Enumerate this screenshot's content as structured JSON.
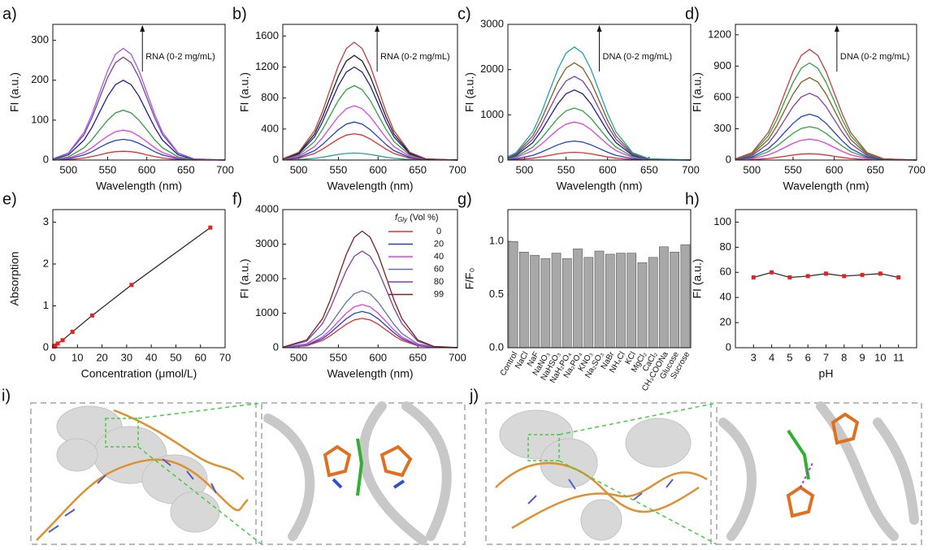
{
  "chart_data": [
    {
      "type": "line",
      "label": "a)",
      "x_label": "Wavelength (nm)",
      "y_label": "FI (a.u.)",
      "annotation": "RNA (0-2 mg/mL)",
      "xlim": [
        480,
        700
      ],
      "xticks": [
        500,
        550,
        600,
        650,
        700
      ],
      "ylim": [
        0,
        340
      ],
      "yticks": [
        0,
        100,
        200,
        300
      ],
      "x": [
        480,
        500,
        520,
        530,
        540,
        550,
        560,
        570,
        580,
        590,
        600,
        610,
        620,
        640,
        660,
        700
      ],
      "series": [
        {
          "color": "#e03030",
          "values": [
            0,
            1,
            5,
            9,
            13,
            18,
            21,
            22,
            21,
            18,
            13,
            9,
            5,
            1,
            0,
            0
          ]
        },
        {
          "color": "#2040c8",
          "values": [
            1,
            3,
            13,
            21,
            32,
            42,
            49,
            52,
            49,
            42,
            32,
            21,
            13,
            3,
            1,
            0
          ]
        },
        {
          "color": "#e040e0",
          "values": [
            1,
            5,
            19,
            31,
            46,
            60,
            71,
            75,
            71,
            60,
            46,
            31,
            19,
            5,
            1,
            0
          ]
        },
        {
          "color": "#30a040",
          "values": [
            1,
            8,
            31,
            51,
            76,
            100,
            118,
            125,
            118,
            100,
            76,
            51,
            31,
            8,
            1,
            0
          ]
        },
        {
          "color": "#202090",
          "values": [
            2,
            13,
            50,
            82,
            121,
            160,
            189,
            200,
            189,
            160,
            121,
            82,
            50,
            13,
            2,
            0
          ]
        },
        {
          "color": "#8040a0",
          "values": [
            3,
            17,
            64,
            106,
            157,
            207,
            244,
            258,
            244,
            207,
            157,
            106,
            64,
            17,
            3,
            0
          ]
        },
        {
          "color": "#a060e0",
          "values": [
            3,
            18,
            70,
            115,
            170,
            224,
            265,
            280,
            265,
            224,
            170,
            115,
            70,
            18,
            3,
            0
          ]
        }
      ]
    },
    {
      "type": "line",
      "label": "b)",
      "x_label": "Wavelength (nm)",
      "y_label": "FI (a.u.)",
      "annotation": "RNA (0-2 mg/mL)",
      "xlim": [
        480,
        700
      ],
      "xticks": [
        500,
        550,
        600,
        650,
        700
      ],
      "ylim": [
        0,
        1750
      ],
      "yticks": [
        0,
        400,
        800,
        1200,
        1600
      ],
      "x": [
        480,
        500,
        520,
        530,
        540,
        550,
        560,
        570,
        580,
        590,
        600,
        610,
        620,
        640,
        660,
        700
      ],
      "series": [
        {
          "color": "#20a0a0",
          "values": [
            1,
            6,
            22,
            37,
            55,
            72,
            85,
            90,
            85,
            72,
            55,
            37,
            22,
            6,
            1,
            0
          ]
        },
        {
          "color": "#e03030",
          "values": [
            4,
            22,
            85,
            140,
            206,
            272,
            322,
            340,
            322,
            272,
            206,
            140,
            85,
            22,
            4,
            0
          ]
        },
        {
          "color": "#2040c8",
          "values": [
            5,
            32,
            122,
            201,
            297,
            392,
            464,
            490,
            464,
            392,
            297,
            201,
            122,
            32,
            5,
            0
          ]
        },
        {
          "color": "#e040e0",
          "values": [
            8,
            46,
            174,
            288,
            425,
            561,
            662,
            700,
            662,
            561,
            425,
            288,
            174,
            46,
            8,
            0
          ]
        },
        {
          "color": "#30a040",
          "values": [
            11,
            63,
            239,
            395,
            583,
            769,
            908,
            960,
            908,
            769,
            583,
            395,
            239,
            63,
            11,
            0
          ]
        },
        {
          "color": "#202090",
          "values": [
            13,
            79,
            299,
            493,
            728,
            961,
            1135,
            1200,
            1135,
            961,
            728,
            493,
            299,
            79,
            13,
            0
          ]
        },
        {
          "color": "#202020",
          "values": [
            15,
            89,
            336,
            555,
            819,
            1081,
            1277,
            1350,
            1277,
            1081,
            819,
            555,
            336,
            89,
            15,
            0
          ]
        },
        {
          "color": "#c04040",
          "values": [
            17,
            100,
            378,
            625,
            923,
            1218,
            1438,
            1520,
            1438,
            1218,
            923,
            625,
            378,
            100,
            17,
            0
          ]
        }
      ]
    },
    {
      "type": "line",
      "label": "c)",
      "x_label": "Wavelength (nm)",
      "y_label": "FI (a.u.)",
      "annotation": "DNA (0-2 mg/mL)",
      "xlim": [
        480,
        700
      ],
      "xticks": [
        500,
        550,
        600,
        650,
        700
      ],
      "ylim": [
        0,
        3000
      ],
      "yticks": [
        0,
        1000,
        2000,
        3000
      ],
      "x": [
        480,
        490,
        510,
        520,
        530,
        540,
        550,
        560,
        570,
        580,
        590,
        600,
        610,
        630,
        650,
        700
      ],
      "series": [
        {
          "color": "#e03030",
          "values": [
            5,
            11,
            42,
            70,
            103,
            136,
            161,
            170,
            161,
            136,
            103,
            70,
            42,
            11,
            2,
            0
          ]
        },
        {
          "color": "#2040c8",
          "values": [
            12,
            28,
            105,
            173,
            255,
            336,
            397,
            420,
            397,
            336,
            255,
            173,
            105,
            28,
            5,
            0
          ]
        },
        {
          "color": "#e040e0",
          "values": [
            24,
            55,
            209,
            345,
            510,
            673,
            795,
            840,
            795,
            673,
            510,
            345,
            209,
            55,
            9,
            0
          ]
        },
        {
          "color": "#30a040",
          "values": [
            33,
            76,
            286,
            473,
            698,
            921,
            1088,
            1150,
            1088,
            921,
            698,
            473,
            286,
            76,
            13,
            0
          ]
        },
        {
          "color": "#202090",
          "values": [
            45,
            102,
            386,
            637,
            941,
            1242,
            1466,
            1550,
            1466,
            1242,
            941,
            637,
            386,
            102,
            17,
            0
          ]
        },
        {
          "color": "#8040a0",
          "values": [
            54,
            122,
            461,
            760,
            1123,
            1482,
            1750,
            1850,
            1750,
            1482,
            1123,
            760,
            461,
            122,
            20,
            0
          ]
        },
        {
          "color": "#806020",
          "values": [
            62,
            142,
            535,
            884,
            1305,
            1722,
            2034,
            2150,
            2034,
            1722,
            1305,
            884,
            535,
            142,
            24,
            0
          ]
        },
        {
          "color": "#20a0c0",
          "values": [
            73,
            165,
            623,
            1028,
            1518,
            2003,
            2365,
            2500,
            2365,
            2003,
            1518,
            1028,
            623,
            165,
            28,
            0
          ]
        }
      ]
    },
    {
      "type": "line",
      "label": "d)",
      "x_label": "Wavelength (nm)",
      "y_label": "FI (a.u.)",
      "annotation": "DNA (0-2 mg/mL)",
      "xlim": [
        480,
        700
      ],
      "xticks": [
        500,
        550,
        600,
        650,
        700
      ],
      "ylim": [
        0,
        1300
      ],
      "yticks": [
        0,
        300,
        600,
        900,
        1200
      ],
      "x": [
        480,
        500,
        520,
        530,
        540,
        550,
        560,
        570,
        580,
        590,
        600,
        610,
        620,
        640,
        660,
        700
      ],
      "series": [
        {
          "color": "#e03030",
          "values": [
            1,
            4,
            15,
            25,
            36,
            48,
            57,
            60,
            57,
            48,
            36,
            25,
            15,
            4,
            1,
            0
          ]
        },
        {
          "color": "#e040e0",
          "values": [
            2,
            13,
            50,
            82,
            121,
            160,
            189,
            200,
            189,
            160,
            121,
            82,
            50,
            13,
            2,
            0
          ]
        },
        {
          "color": "#30a040",
          "values": [
            4,
            21,
            80,
            132,
            194,
            256,
            303,
            320,
            303,
            256,
            194,
            132,
            80,
            21,
            4,
            0
          ]
        },
        {
          "color": "#2040c8",
          "values": [
            5,
            29,
            110,
            181,
            267,
            352,
            416,
            440,
            416,
            352,
            267,
            181,
            110,
            29,
            5,
            0
          ]
        },
        {
          "color": "#8040a0",
          "values": [
            7,
            42,
            159,
            263,
            388,
            513,
            605,
            640,
            605,
            513,
            388,
            263,
            159,
            42,
            7,
            0
          ]
        },
        {
          "color": "#806020",
          "values": [
            9,
            52,
            197,
            325,
            480,
            633,
            747,
            790,
            747,
            633,
            480,
            325,
            197,
            52,
            9,
            0
          ]
        },
        {
          "color": "#30a040",
          "values": [
            10,
            61,
            232,
            382,
            565,
            745,
            880,
            930,
            880,
            745,
            565,
            382,
            232,
            61,
            10,
            0
          ]
        },
        {
          "color": "#c04040",
          "values": [
            12,
            70,
            264,
            436,
            643,
            849,
            1003,
            1060,
            1003,
            849,
            643,
            436,
            264,
            70,
            12,
            0
          ]
        }
      ]
    },
    {
      "type": "line",
      "markers": true,
      "label": "e)",
      "x_label": "Concentration (μmol/L)",
      "y_label": "Absorption",
      "xlim": [
        0,
        70
      ],
      "xticks": [
        0,
        10,
        20,
        30,
        40,
        50,
        60,
        70
      ],
      "ylim": [
        0,
        3.3
      ],
      "yticks": [
        0,
        1,
        2,
        3
      ],
      "x": [
        0.5,
        1,
        2,
        4,
        8,
        16,
        32,
        64
      ],
      "values": [
        0.03,
        0.05,
        0.1,
        0.18,
        0.38,
        0.77,
        1.5,
        2.87
      ],
      "color": "#303030",
      "marker_color": "#e82020"
    },
    {
      "type": "line",
      "label": "f)",
      "x_label": "Wavelength (nm)",
      "y_label": "FI (a.u.)",
      "legend_title": {
        "symbol": "f",
        "subscript": "Gly",
        "text": "(Vol %)"
      },
      "xlim": [
        480,
        700
      ],
      "xticks": [
        500,
        550,
        600,
        650,
        700
      ],
      "ylim": [
        0,
        4000
      ],
      "yticks": [
        0,
        1000,
        2000,
        3000,
        4000
      ],
      "x": [
        480,
        510,
        530,
        540,
        550,
        560,
        570,
        580,
        590,
        600,
        610,
        620,
        630,
        650,
        670,
        700
      ],
      "series": [
        {
          "name": "0",
          "color": "#e03030",
          "values": [
            3,
            56,
            212,
            349,
            516,
            681,
            804,
            850,
            804,
            681,
            516,
            349,
            212,
            56,
            9,
            1
          ]
        },
        {
          "name": "20",
          "color": "#2040c8",
          "values": [
            4,
            69,
            261,
            432,
            637,
            841,
            993,
            1050,
            993,
            841,
            637,
            432,
            261,
            69,
            12,
            1
          ]
        },
        {
          "name": "40",
          "color": "#e040e0",
          "values": [
            5,
            83,
            311,
            514,
            759,
            1001,
            1183,
            1250,
            1183,
            1001,
            759,
            514,
            311,
            83,
            14,
            1
          ]
        },
        {
          "name": "60",
          "color": "#6070b0",
          "values": [
            7,
            109,
            411,
            678,
            1002,
            1322,
            1561,
            1650,
            1561,
            1322,
            1002,
            678,
            411,
            109,
            18,
            2
          ]
        },
        {
          "name": "80",
          "color": "#8040a0",
          "values": [
            11,
            185,
            697,
            1151,
            1700,
            2243,
            2649,
            2800,
            2649,
            2243,
            1700,
            1151,
            697,
            185,
            31,
            3
          ]
        },
        {
          "name": "99",
          "color": "#802020",
          "values": [
            14,
            223,
            842,
            1389,
            2052,
            2707,
            3197,
            3380,
            3197,
            2707,
            2052,
            1389,
            842,
            223,
            37,
            3
          ]
        }
      ]
    },
    {
      "type": "bar",
      "label": "g)",
      "y_label": "F/F₀",
      "color": "#a8a8a8",
      "ylim": [
        0,
        1.3
      ],
      "yticks": [
        {
          "value": 0,
          "label": "0.0"
        },
        {
          "value": 0.5,
          "label": "0.5"
        },
        {
          "value": 1,
          "label": "1.0"
        }
      ],
      "categories": [
        "Control",
        "NaCl",
        "NaF",
        "NaNO₃",
        "NaHSO₃",
        "NaH₂PO₄",
        "Na₂PO₄",
        "KNO₃",
        "Na₂SO₃",
        "NaBr",
        "NH₄Cl",
        "KCl",
        "MgCl₂",
        "CaCl₂",
        "CH₃COONa",
        "Glucose",
        "Sucrose"
      ],
      "values": [
        1.0,
        0.9,
        0.87,
        0.84,
        0.89,
        0.84,
        0.93,
        0.85,
        0.91,
        0.88,
        0.89,
        0.89,
        0.8,
        0.85,
        0.95,
        0.9,
        0.97
      ]
    },
    {
      "type": "line",
      "markers": true,
      "label": "h)",
      "x_label": "pH",
      "y_label": "FI (a.u.)",
      "xlim": [
        2,
        12
      ],
      "xticks": [
        3,
        4,
        5,
        6,
        7,
        8,
        9,
        10,
        11
      ],
      "ylim": [
        0,
        110
      ],
      "yticks": [
        0,
        20,
        40,
        60,
        80,
        100
      ],
      "x": [
        3,
        4,
        5,
        6,
        7,
        8,
        9,
        10,
        11
      ],
      "values": [
        56,
        60,
        56,
        57,
        59,
        57,
        58,
        59,
        56
      ],
      "color": "#303030",
      "marker_color": "#e82020"
    }
  ],
  "illustrations": [
    {
      "label": "i)"
    },
    {
      "label": "j)"
    }
  ]
}
